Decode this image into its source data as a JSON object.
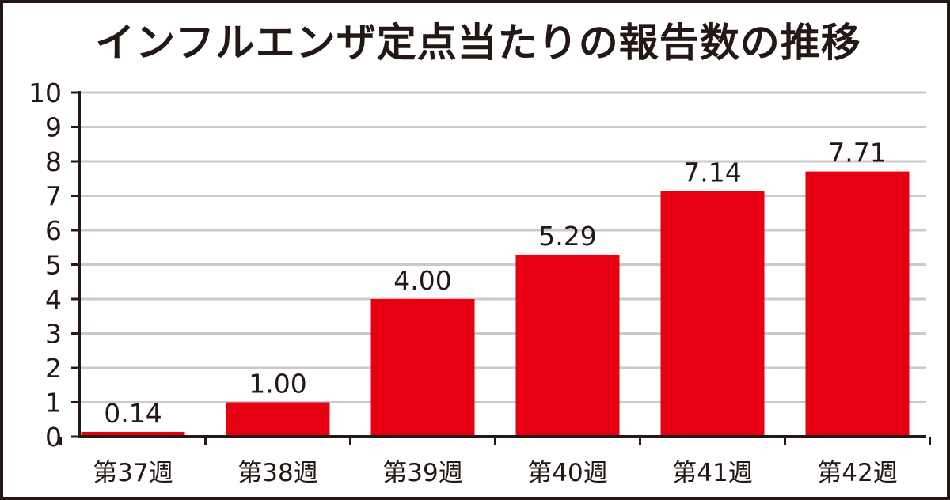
{
  "chart_data": {
    "type": "bar",
    "title": "インフルエンザ定点当たりの報告数の推移",
    "categories": [
      "第37週",
      "第38週",
      "第39週",
      "第40週",
      "第41週",
      "第42週"
    ],
    "values": [
      0.14,
      1.0,
      4.0,
      5.29,
      7.14,
      7.71
    ],
    "value_labels": [
      "0.14",
      "1.00",
      "4.00",
      "5.29",
      "7.14",
      "7.71"
    ],
    "ylim": [
      0,
      10
    ],
    "yticks": [
      0,
      1,
      2,
      3,
      4,
      5,
      6,
      7,
      8,
      9,
      10
    ],
    "xlabel": "",
    "ylabel": "",
    "grid": true,
    "legend": "none",
    "colors": {
      "bar": "#e60012",
      "grid": "#c9caca",
      "axis": "#231815",
      "text": "#231815"
    }
  }
}
